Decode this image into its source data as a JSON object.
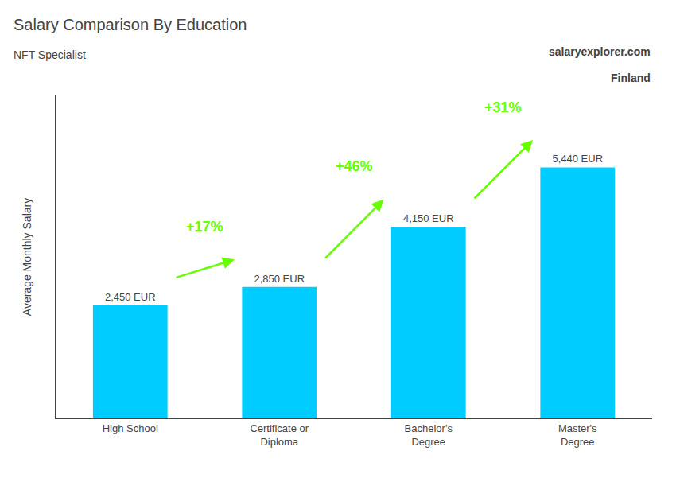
{
  "chart_data": {
    "type": "bar",
    "title": "Salary Comparison By Education",
    "subtitle": "NFT Specialist",
    "categories": [
      "High School",
      "Certificate or\nDiploma",
      "Bachelor's\nDegree",
      "Master's\nDegree"
    ],
    "values": [
      2450,
      2850,
      4150,
      5440
    ],
    "value_labels": [
      "2,450 EUR",
      "2,850 EUR",
      "4,150 EUR",
      "5,440 EUR"
    ],
    "data_labels": true,
    "color": "#00ccff",
    "ylabel": "Average Monthly Salary",
    "ylim": [
      0,
      7000
    ],
    "yticks": [],
    "tick_labels": "x",
    "grid": false,
    "annotations": [
      {
        "text": "Finland"
      },
      {
        "text": "salaryexplorer.com"
      },
      {
        "text": "+17%",
        "color": "#66ff00",
        "from": "High School",
        "to": "Certificate or\nDiploma"
      },
      {
        "text": "+46%",
        "color": "#66ff00",
        "from": "Certificate or\nDiploma",
        "to": "Bachelor's\nDegree"
      },
      {
        "text": "+31%",
        "color": "#66ff00",
        "from": "Bachelor's\nDegree",
        "to": "Master's\nDegree"
      }
    ]
  }
}
